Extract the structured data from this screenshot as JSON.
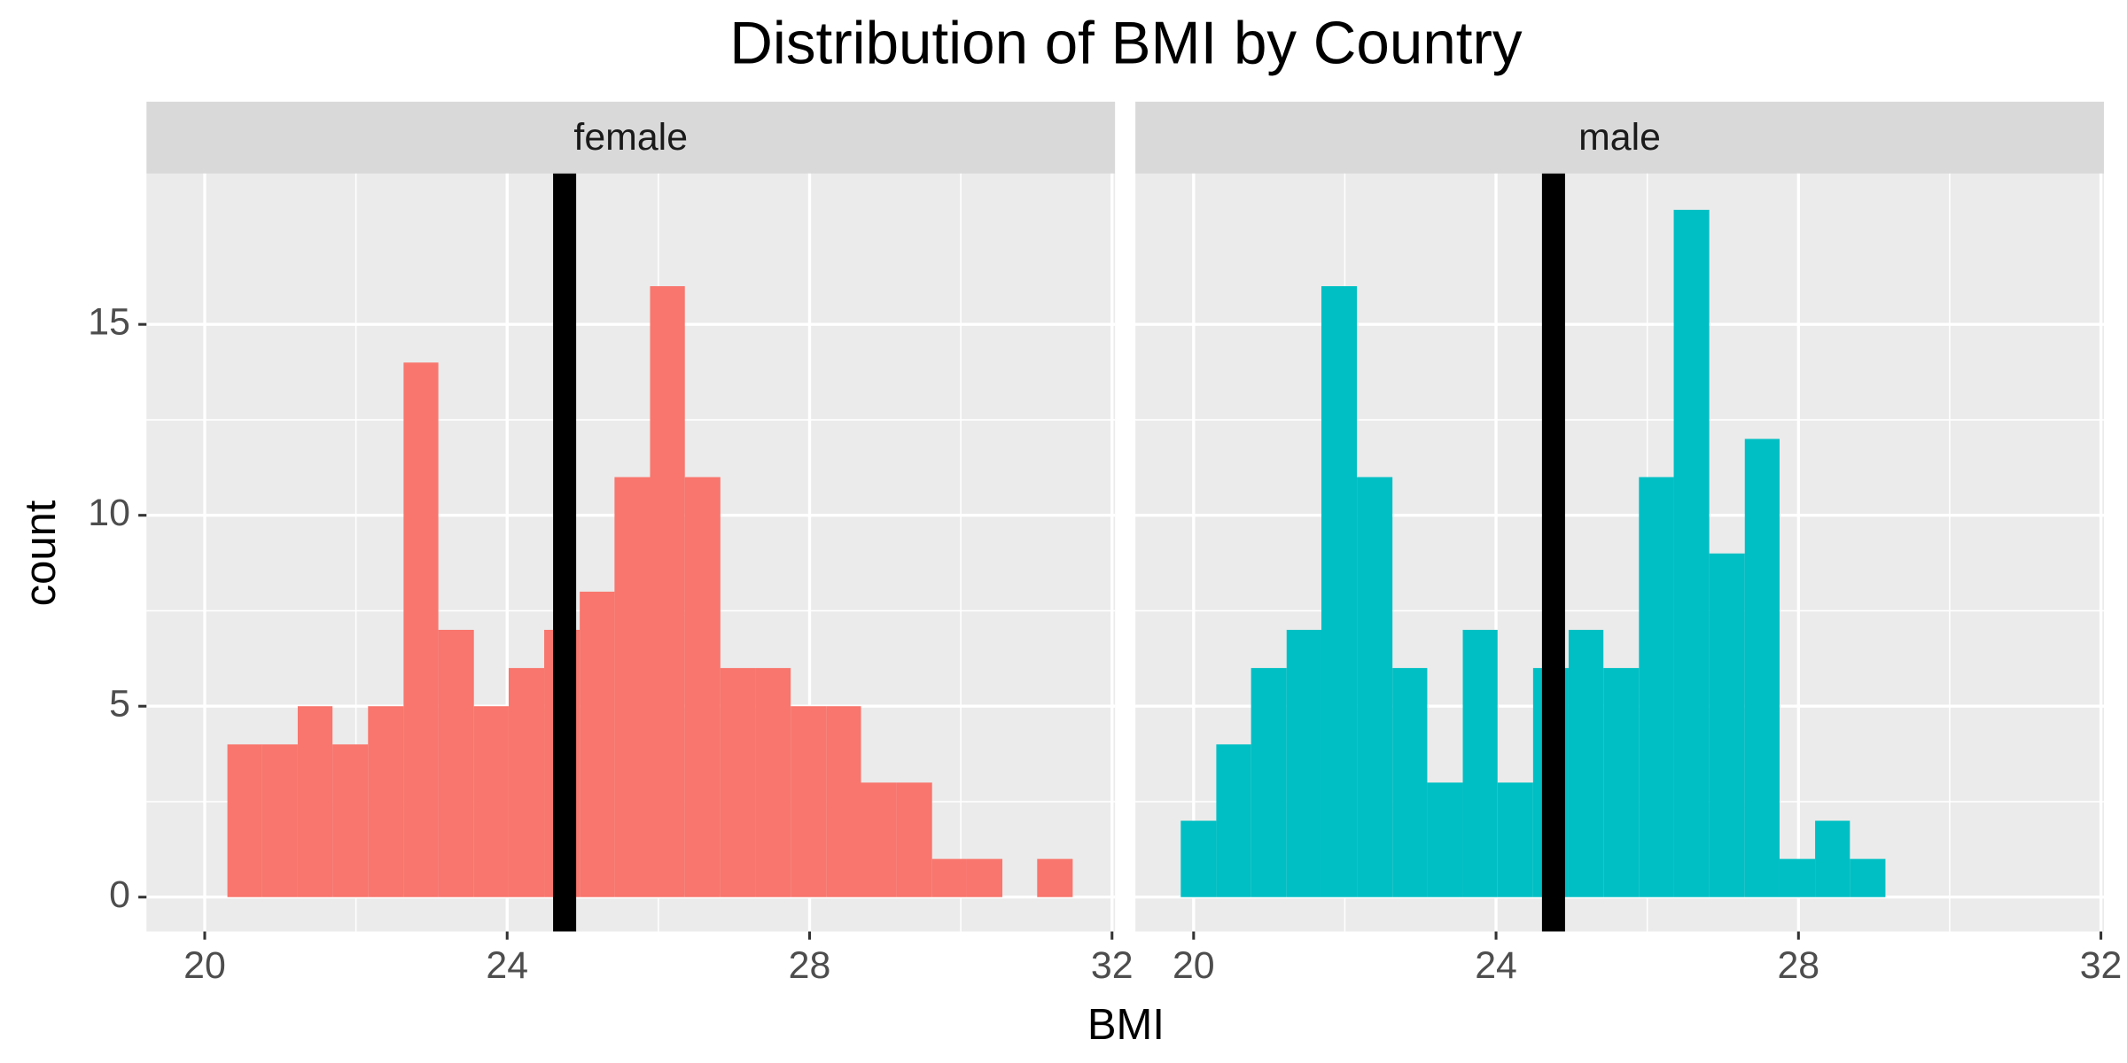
{
  "chart_data": {
    "type": "histogram",
    "title": "Distribution of BMI by Country",
    "x_label": "BMI",
    "y_label": "count",
    "bins": [
      19.83,
      20.3,
      20.76,
      21.23,
      21.69,
      22.16,
      22.63,
      23.09,
      23.56,
      24.02,
      24.49,
      24.96,
      25.42,
      25.89,
      26.35,
      26.82,
      27.29,
      27.75,
      28.22,
      28.68,
      29.15,
      29.62,
      30.08,
      30.55,
      31.01,
      31.48
    ],
    "series": [
      {
        "name": "female",
        "color": "#f8766d",
        "values": [
          0,
          4,
          4,
          5,
          4,
          5,
          14,
          7,
          5,
          6,
          7,
          8,
          11,
          16,
          11,
          6,
          6,
          5,
          5,
          3,
          3,
          1,
          1,
          0,
          1
        ]
      },
      {
        "name": "male",
        "color": "#00bfc4",
        "values": [
          2,
          4,
          6,
          7,
          16,
          11,
          6,
          3,
          7,
          3,
          6,
          7,
          6,
          11,
          18,
          9,
          12,
          1,
          2,
          1,
          0,
          0,
          0,
          0,
          0
        ]
      }
    ],
    "vline": 24.76,
    "vline_color": "#000000",
    "xlim": [
      19.23,
      32.04
    ],
    "xticks": [
      20,
      24,
      28,
      32
    ],
    "ylim": [
      -0.9,
      18.95
    ],
    "yticks": [
      0,
      5,
      10,
      15
    ],
    "grid": true
  }
}
